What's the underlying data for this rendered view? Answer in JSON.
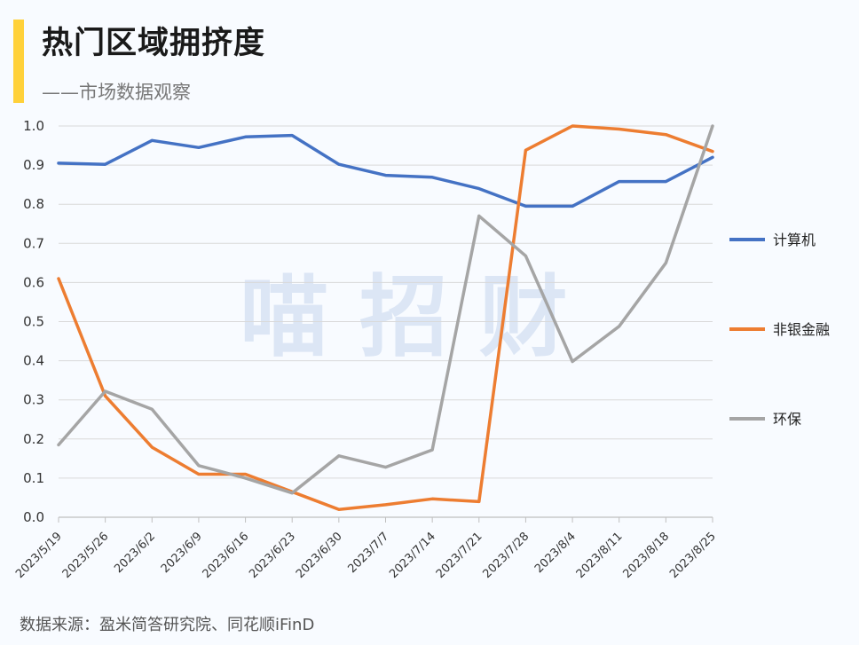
{
  "header": {
    "title": "热门区域拥挤度",
    "subtitle": "——市场数据观察"
  },
  "watermark": "喵 招 财",
  "footer": {
    "source": "数据来源：盈米简答研究院、同花顺iFinD"
  },
  "colors": {
    "accent": "#ffd13a",
    "grid": "#d9d9d9",
    "background": "#f8fbff"
  },
  "chart_data": {
    "type": "line",
    "x": [
      "2023/5/19",
      "2023/5/26",
      "2023/6/2",
      "2023/6/9",
      "2023/6/16",
      "2023/6/23",
      "2023/6/30",
      "2023/7/7",
      "2023/7/14",
      "2023/7/21",
      "2023/7/28",
      "2023/8/4",
      "2023/8/11",
      "2023/8/18",
      "2023/8/25"
    ],
    "ylim": [
      0,
      1.0
    ],
    "yticks": [
      "0.0",
      "0.1",
      "0.2",
      "0.3",
      "0.4",
      "0.5",
      "0.6",
      "0.7",
      "0.8",
      "0.9",
      "1.0"
    ],
    "grid": true,
    "legend_position": "right",
    "series": [
      {
        "name": "计算机",
        "color": "#4472c4",
        "values": [
          0.905,
          0.902,
          0.963,
          0.945,
          0.972,
          0.976,
          0.902,
          0.874,
          0.869,
          0.84,
          0.795,
          0.795,
          0.858,
          0.858,
          0.92
        ]
      },
      {
        "name": "非银金融",
        "color": "#ed7d31",
        "values": [
          0.61,
          0.31,
          0.179,
          0.11,
          0.11,
          0.065,
          0.02,
          0.032,
          0.047,
          0.04,
          0.938,
          1.0,
          0.992,
          0.978,
          0.935
        ]
      },
      {
        "name": "环保",
        "color": "#a5a5a5",
        "values": [
          0.185,
          0.322,
          0.276,
          0.132,
          0.1,
          0.062,
          0.157,
          0.128,
          0.172,
          0.77,
          0.668,
          0.398,
          0.488,
          0.65,
          1.0
        ]
      }
    ]
  }
}
